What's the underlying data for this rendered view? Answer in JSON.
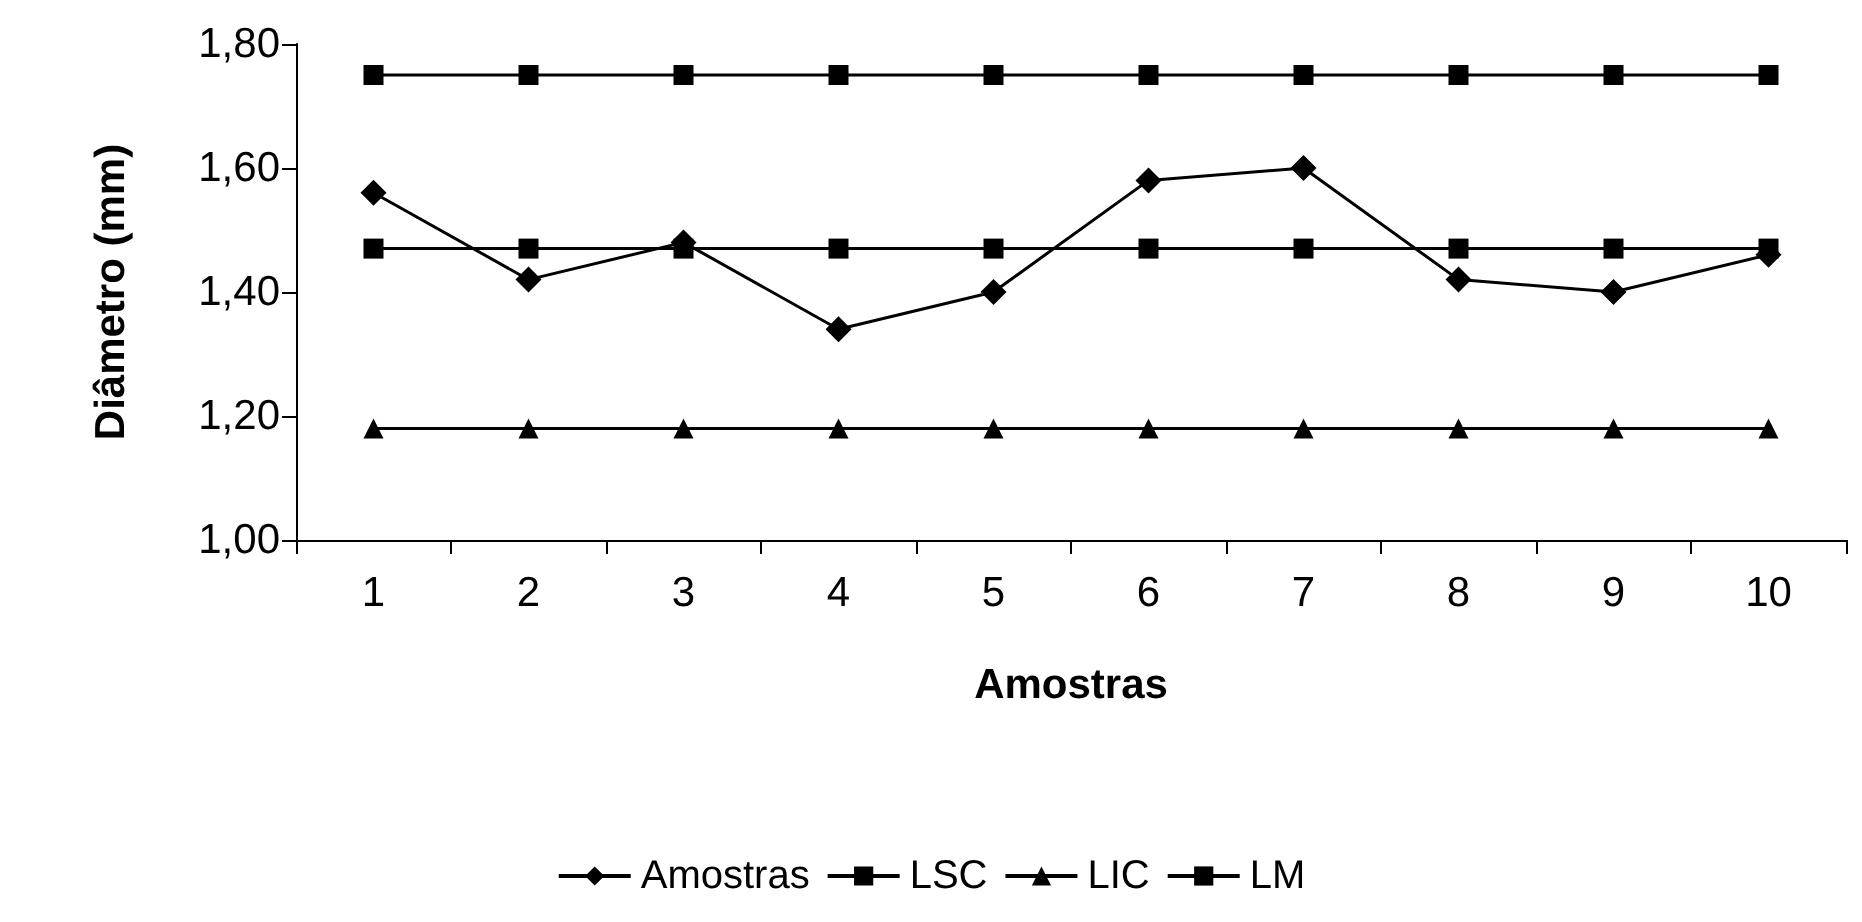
{
  "chart_data": {
    "type": "line",
    "xlabel": "Amostras",
    "ylabel": "Diâmetro (mm)",
    "categories": [
      "1",
      "2",
      "3",
      "4",
      "5",
      "6",
      "7",
      "8",
      "9",
      "10"
    ],
    "ylim": [
      1.0,
      1.8
    ],
    "yticks": [
      {
        "value": 1.0,
        "label": "1,00"
      },
      {
        "value": 1.2,
        "label": "1,20"
      },
      {
        "value": 1.4,
        "label": "1,40"
      },
      {
        "value": 1.6,
        "label": "1,60"
      },
      {
        "value": 1.8,
        "label": "1,80"
      }
    ],
    "grid": false,
    "legend": "bottom",
    "line_style": "solid",
    "series": [
      {
        "name": "Amostras",
        "color": "#000000",
        "marker": "diamond",
        "values": [
          1.56,
          1.42,
          1.48,
          1.34,
          1.4,
          1.58,
          1.6,
          1.42,
          1.4,
          1.46
        ]
      },
      {
        "name": "LSC",
        "color": "#000000",
        "marker": "square",
        "values": [
          1.75,
          1.75,
          1.75,
          1.75,
          1.75,
          1.75,
          1.75,
          1.75,
          1.75,
          1.75
        ]
      },
      {
        "name": "LIC",
        "color": "#000000",
        "marker": "triangle",
        "values": [
          1.18,
          1.18,
          1.18,
          1.18,
          1.18,
          1.18,
          1.18,
          1.18,
          1.18,
          1.18
        ]
      },
      {
        "name": "LM",
        "color": "#000000",
        "marker": "square",
        "values": [
          1.47,
          1.47,
          1.47,
          1.47,
          1.47,
          1.47,
          1.47,
          1.47,
          1.47,
          1.47
        ]
      }
    ]
  }
}
